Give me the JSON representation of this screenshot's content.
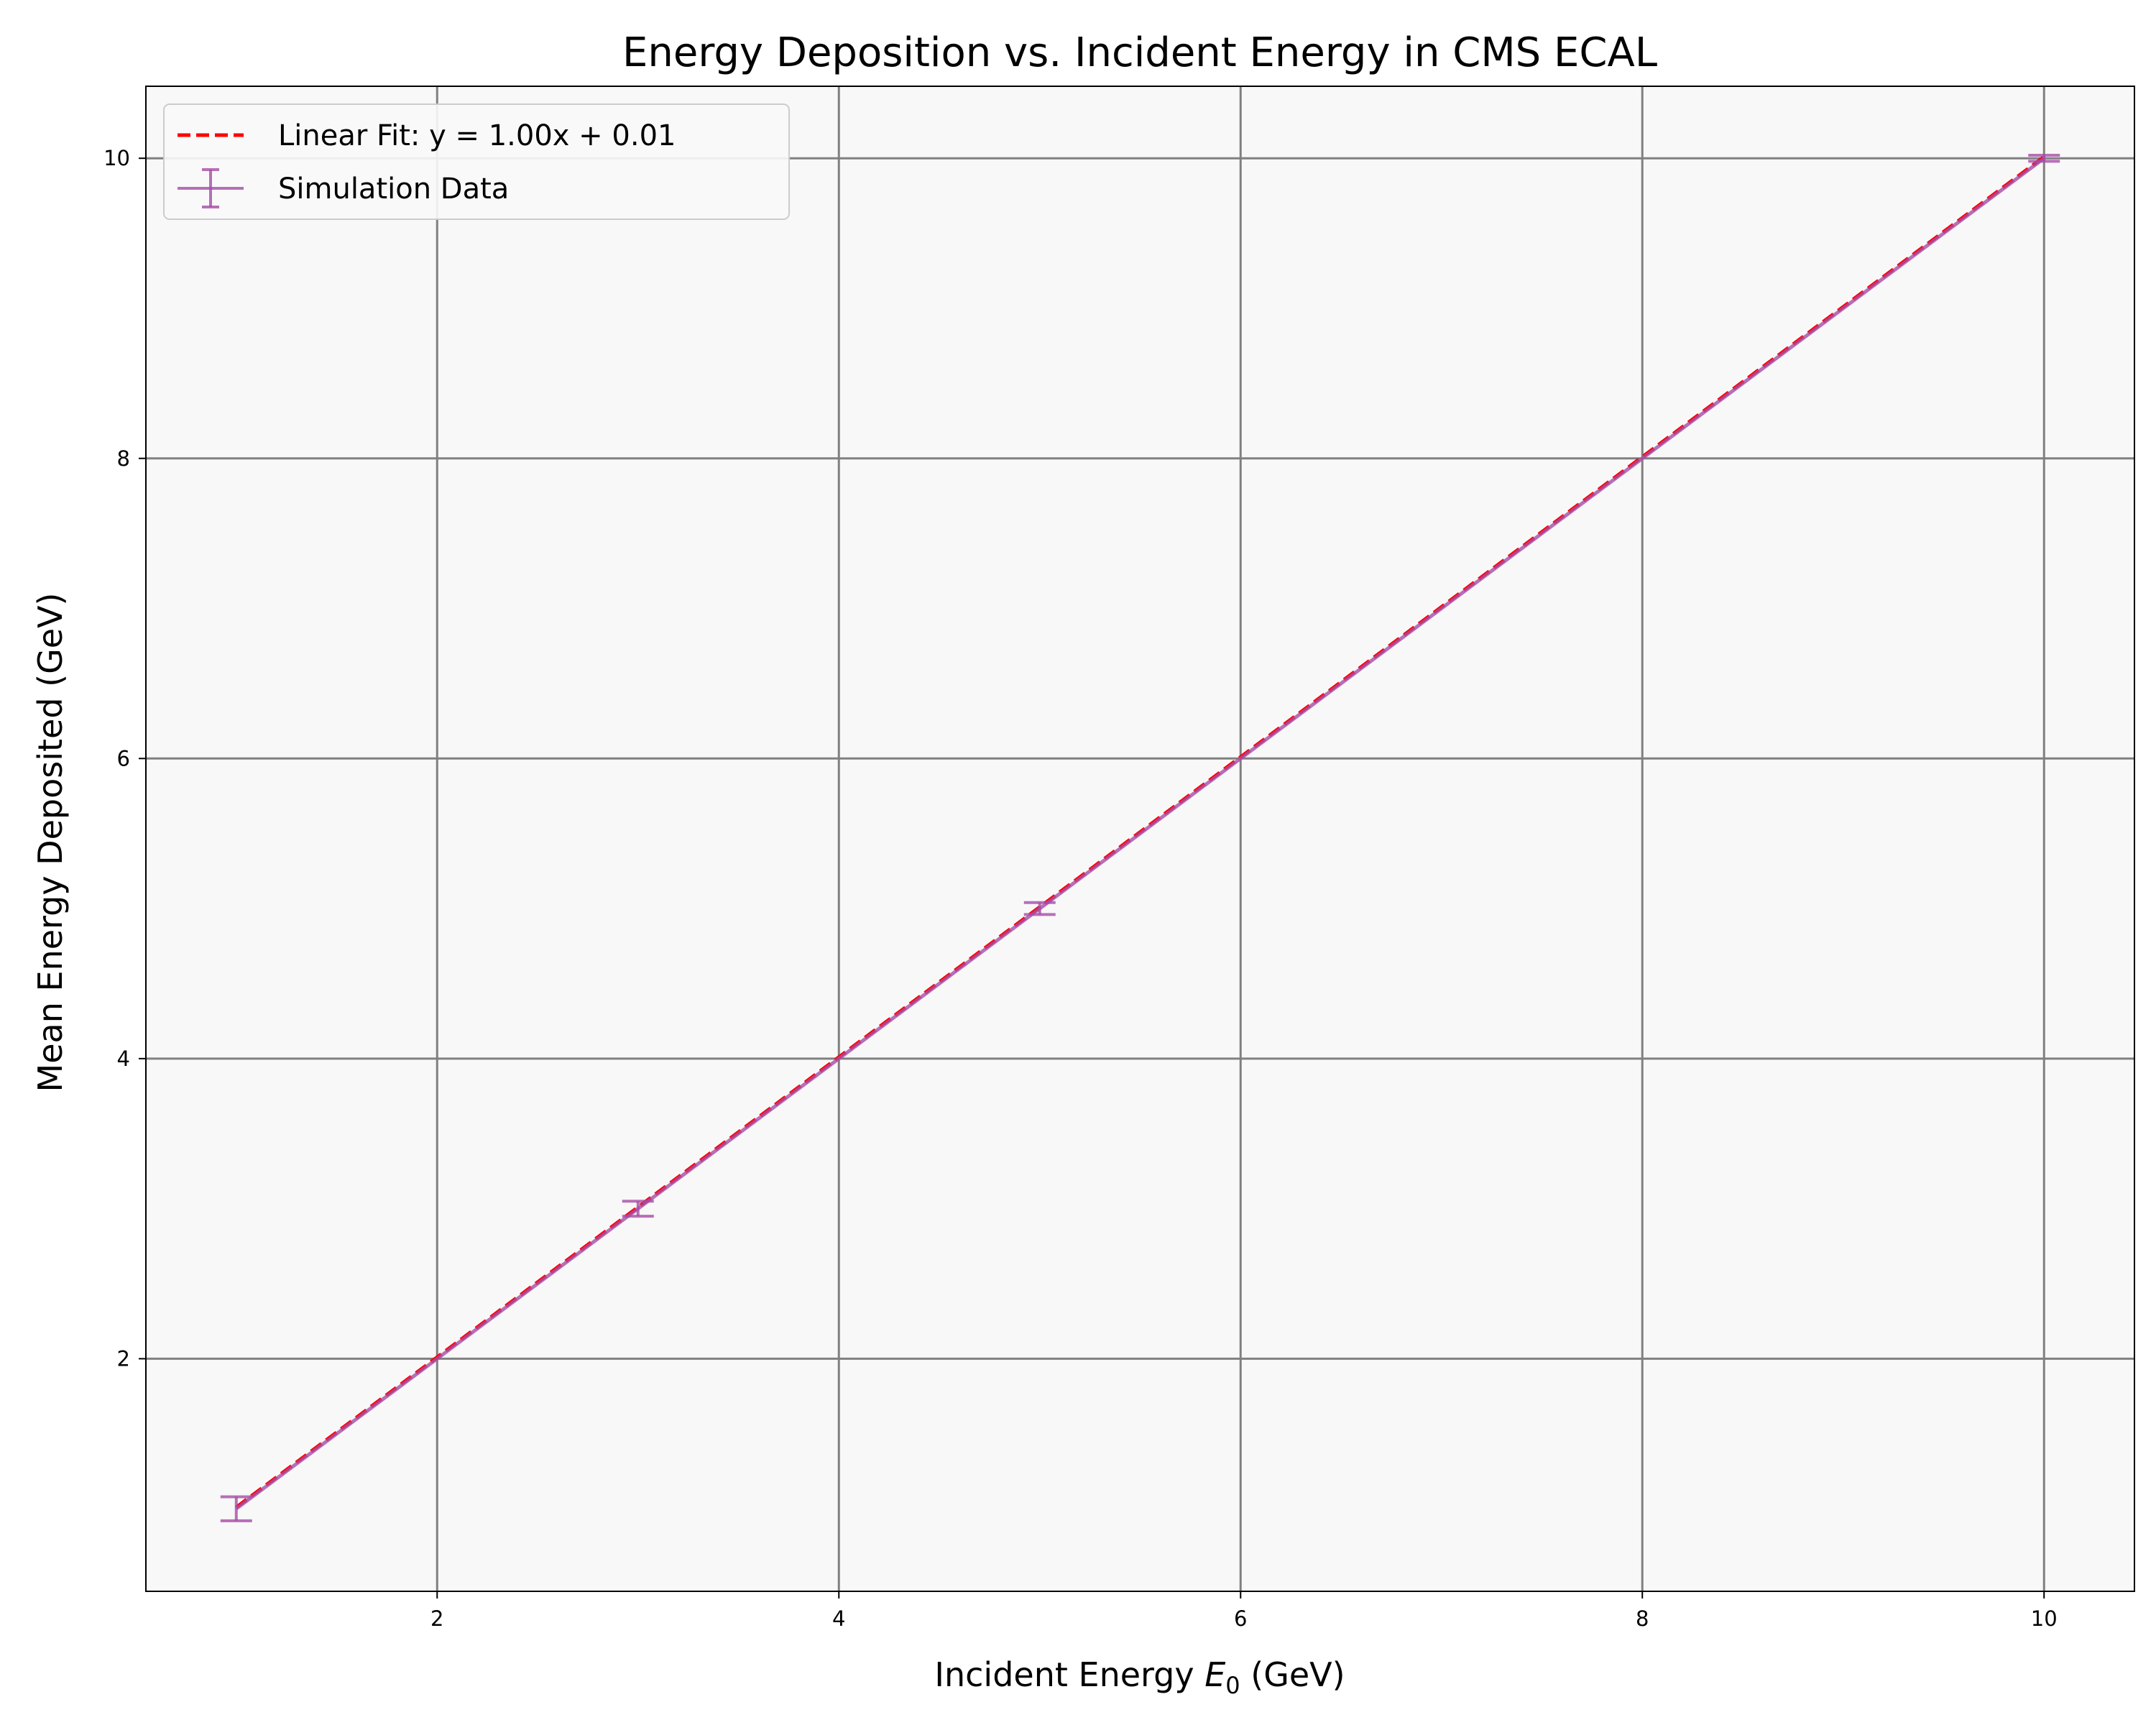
{
  "chart_data": {
    "type": "scatter",
    "title": "Energy Deposition vs. Incident Energy in CMS ECAL",
    "xlabel_prefix": "Incident Energy ",
    "xlabel_var": "E",
    "xlabel_sub": "0",
    "xlabel_suffix": " (GeV)",
    "ylabel": "Mean Energy Deposited (GeV)",
    "xlim": [
      0.55,
      10.45
    ],
    "ylim": [
      0.45,
      10.48
    ],
    "xticks": [
      2,
      4,
      6,
      8,
      10
    ],
    "yticks": [
      2,
      4,
      6,
      8,
      10
    ],
    "grid": true,
    "legend_position": "top-left",
    "series": [
      {
        "name": "Simulation Data",
        "kind": "errorbar",
        "color": "#a64ca6",
        "x": [
          1,
          3,
          5,
          10
        ],
        "y": [
          1.0,
          3.0,
          5.0,
          10.0
        ],
        "yerr": [
          0.08,
          0.05,
          0.04,
          0.02
        ]
      },
      {
        "name": "Linear Fit: y = 1.00x + 0.01",
        "kind": "line",
        "style": "dashed",
        "color": "#ff0000",
        "slope": 1.0,
        "intercept": 0.01,
        "x": [
          1,
          10
        ]
      }
    ],
    "colors": {
      "plot_background": "#f8f8f8",
      "grid": "#808080",
      "fit": "#ff0000",
      "data": "#a64ca6"
    }
  }
}
